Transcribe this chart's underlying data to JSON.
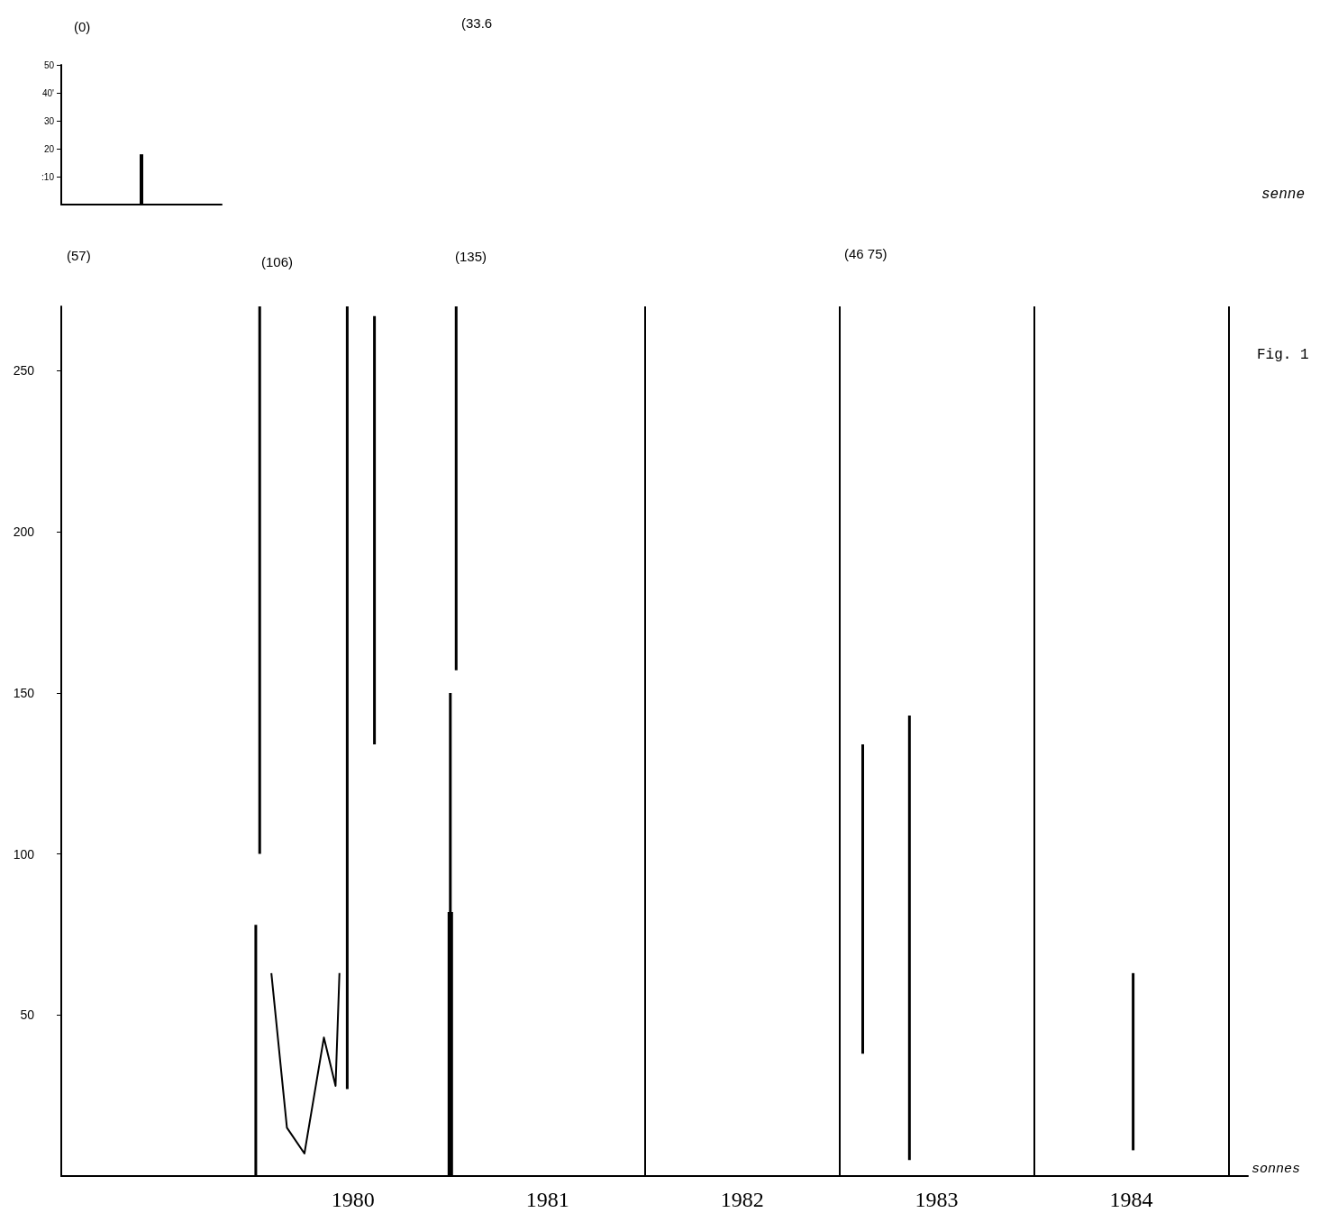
{
  "chart_data": [
    {
      "type": "bar",
      "categories": [
        null
      ],
      "values": [
        18
      ],
      "color": "#000000",
      "ylim": [
        0,
        50
      ],
      "yticks": [
        {
          "value": 10,
          "label": ":10"
        },
        20,
        30,
        {
          "value": 40,
          "label": "40'"
        },
        50
      ]
    },
    {
      "type": "bar",
      "xlabel": "sonnes",
      "xlim": [
        1979,
        1985.1
      ],
      "xticks": [
        {
          "value": 1980.5,
          "label": "1980"
        },
        {
          "value": 1981.5,
          "label": "1981"
        },
        {
          "value": 1982.5,
          "label": "1982"
        },
        {
          "value": 1983.5,
          "label": "1983"
        },
        {
          "value": 1984.5,
          "label": "1984"
        }
      ],
      "ylim": [
        0,
        270
      ],
      "yticks": [
        50,
        100,
        150,
        200,
        250
      ],
      "marker": "none",
      "series": [
        {
          "color": "#000000",
          "x": [
            1980.0,
            1980.02,
            1980.47,
            1980.61,
            1981.0,
            1981.03,
            1983.12,
            1983.36,
            1984.51
          ],
          "base": [
            0,
            100,
            27,
            134,
            0,
            157,
            38,
            5,
            8
          ],
          "values": [
            78,
            170,
            243,
            133,
            150,
            113,
            96,
            138,
            55
          ]
        },
        {
          "color": "#000000",
          "x": [
            1981.0
          ],
          "base": [
            0
          ],
          "values": [
            82
          ]
        },
        {
          "type": "line",
          "color": "#000000",
          "x": [
            1980.08,
            1980.16,
            1980.25,
            1980.35,
            1980.41,
            1980.43
          ],
          "values": [
            63,
            15,
            7,
            43,
            28,
            63
          ]
        }
      ],
      "ref_lines": [
        {
          "axis": "x",
          "value": 1982,
          "color": "#000000"
        },
        {
          "axis": "x",
          "value": 1983,
          "color": "#000000"
        },
        {
          "axis": "x",
          "value": 1984,
          "color": "#000000"
        },
        {
          "axis": "x",
          "value": 1985,
          "color": "#000000"
        }
      ],
      "annotations": [
        "(0)",
        "(33.6",
        "(57)",
        "(106)",
        "(135)",
        "(46 75)",
        "senne",
        "Fig. 1"
      ]
    }
  ]
}
